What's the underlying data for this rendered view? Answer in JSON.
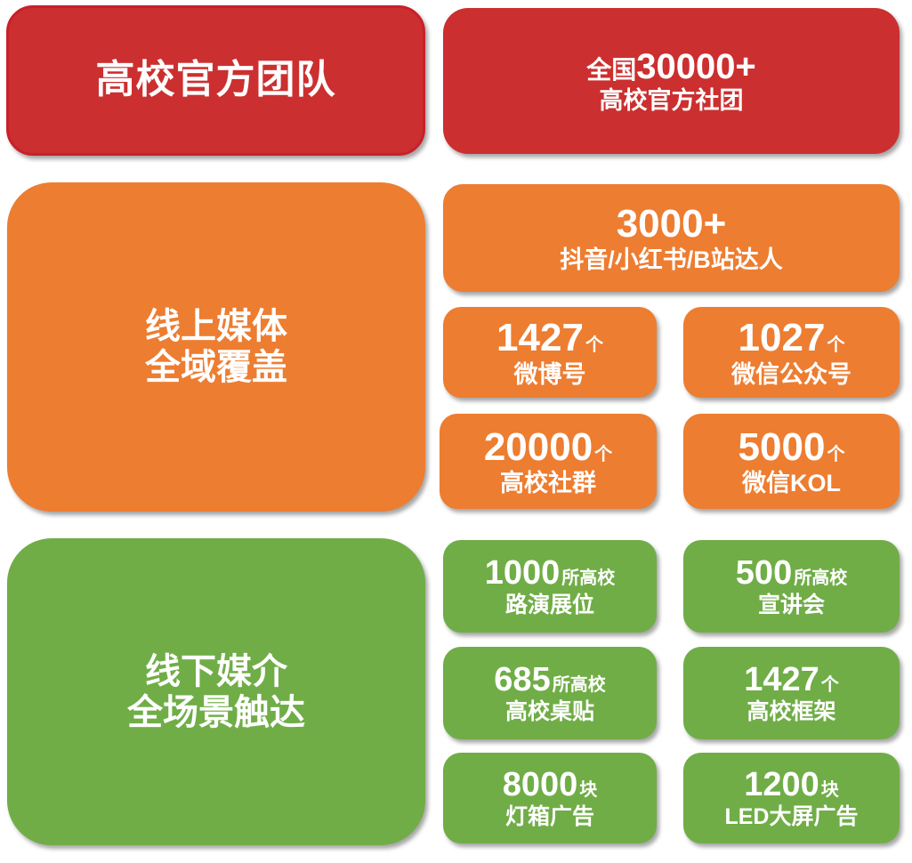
{
  "colors": {
    "red": "#cc2f2f",
    "orange": "#ed7d31",
    "green": "#70ad47"
  },
  "sections": {
    "official": {
      "title": "高校官方团队",
      "card": {
        "prefix": "全国",
        "number": "30000+",
        "label": "高校官方社团"
      }
    },
    "online": {
      "title_line1": "线上媒体",
      "title_line2": "全域覆盖",
      "top_card": {
        "number": "3000+",
        "label": "抖音/小红书/B站达人"
      },
      "cards": [
        {
          "number": "1427",
          "unit": "个",
          "label": "微博号"
        },
        {
          "number": "1027",
          "unit": "个",
          "label": "微信公众号"
        },
        {
          "number": "20000",
          "unit": "个",
          "label": "高校社群"
        },
        {
          "number": "5000",
          "unit": "个",
          "label": "微信KOL"
        }
      ]
    },
    "offline": {
      "title_line1": "线下媒介",
      "title_line2": "全场景触达",
      "cards": [
        {
          "number": "1000",
          "unit": "所高校",
          "label": "路演展位"
        },
        {
          "number": "500",
          "unit": "所高校",
          "label": "宣讲会"
        },
        {
          "number": "685",
          "unit": "所高校",
          "label": "高校桌贴"
        },
        {
          "number": "1427",
          "unit": "个",
          "label": "高校框架"
        },
        {
          "number": "8000",
          "unit": "块",
          "label": "灯箱广告"
        },
        {
          "number": "1200",
          "unit": "块",
          "label": "LED大屏广告"
        }
      ]
    }
  }
}
